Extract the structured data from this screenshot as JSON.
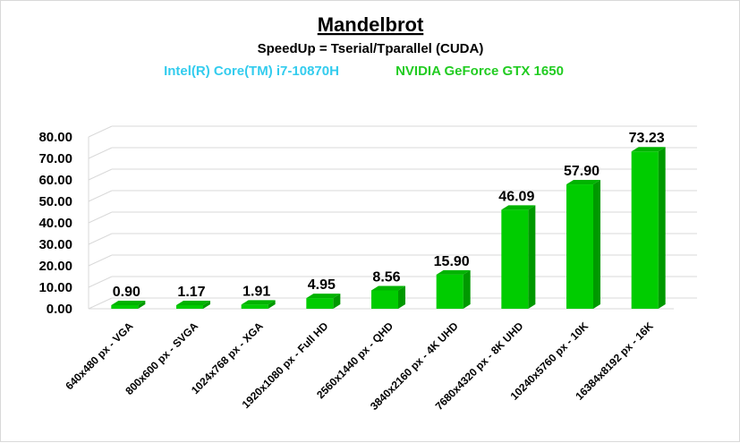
{
  "chart_data": {
    "type": "bar",
    "title": "Mandelbrot",
    "subtitle": "SpeedUp = Tserial/Tparallel (CUDA)",
    "cpu_label": "Intel(R) Core(TM) i7-10870H",
    "gpu_label": "NVIDIA GeForce GTX 1650",
    "categories": [
      "640x480 px - VGA",
      "800x600 px - SVGA",
      "1024x768 px - XGA",
      "1920x1080 px - Full HD",
      "2560x1440 px - QHD",
      "3840x2160 px - 4K UHD",
      "7680x4320 px - 8K UHD",
      "10240x5760 px - 10K",
      "16384x8192 px - 16K"
    ],
    "values": [
      0.9,
      1.17,
      1.91,
      4.95,
      8.56,
      15.9,
      46.09,
      57.9,
      73.23
    ],
    "value_labels": [
      "0.90",
      "1.17",
      "1.91",
      "4.95",
      "8.56",
      "15.90",
      "46.09",
      "57.90",
      "73.23"
    ],
    "y_ticks": [
      "0.00",
      "10.00",
      "20.00",
      "30.00",
      "40.00",
      "50.00",
      "60.00",
      "70.00",
      "80.00"
    ],
    "ylim": [
      0,
      80
    ],
    "grid": true,
    "bar_style": "3d",
    "colors": {
      "bar_front": "#00cc00",
      "bar_side": "#009900",
      "bar_top": "#00b300",
      "cpu_text": "#33ccee",
      "gpu_text": "#22cc22",
      "grid": "#d9d9d9"
    }
  }
}
